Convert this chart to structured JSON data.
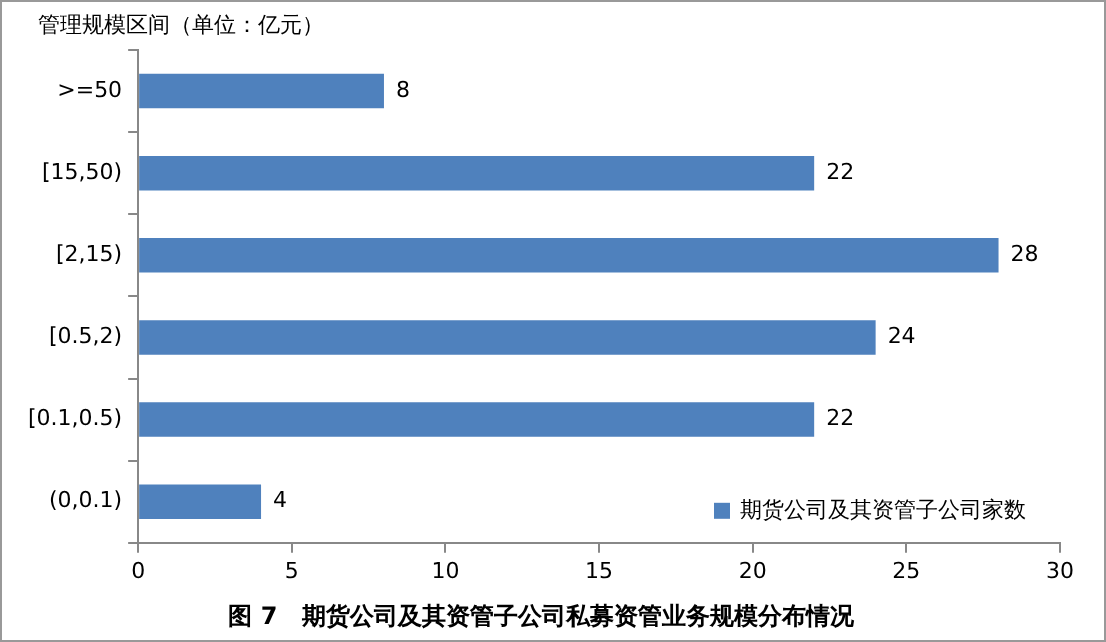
{
  "chart_data": {
    "type": "bar",
    "orientation": "horizontal",
    "title": "图 7　期货公司及其资管子公司私募资管业务规模分布情况",
    "ylabel": "管理规模区间（单位：亿元）",
    "categories": [
      ">=50",
      "[15,50)",
      "[2,15)",
      "[0.5,2)",
      "[0.1,0.5)",
      "(0,0.1)"
    ],
    "series": [
      {
        "name": "期货公司及其资管子公司家数",
        "color": "#4f81bd",
        "values": [
          8,
          22,
          28,
          24,
          22,
          4
        ]
      }
    ],
    "xlim": [
      0,
      30
    ],
    "xticks": [
      0,
      5,
      10,
      15,
      20,
      25,
      30
    ],
    "grid": false,
    "legend": "bottom right",
    "data_labels": true
  }
}
